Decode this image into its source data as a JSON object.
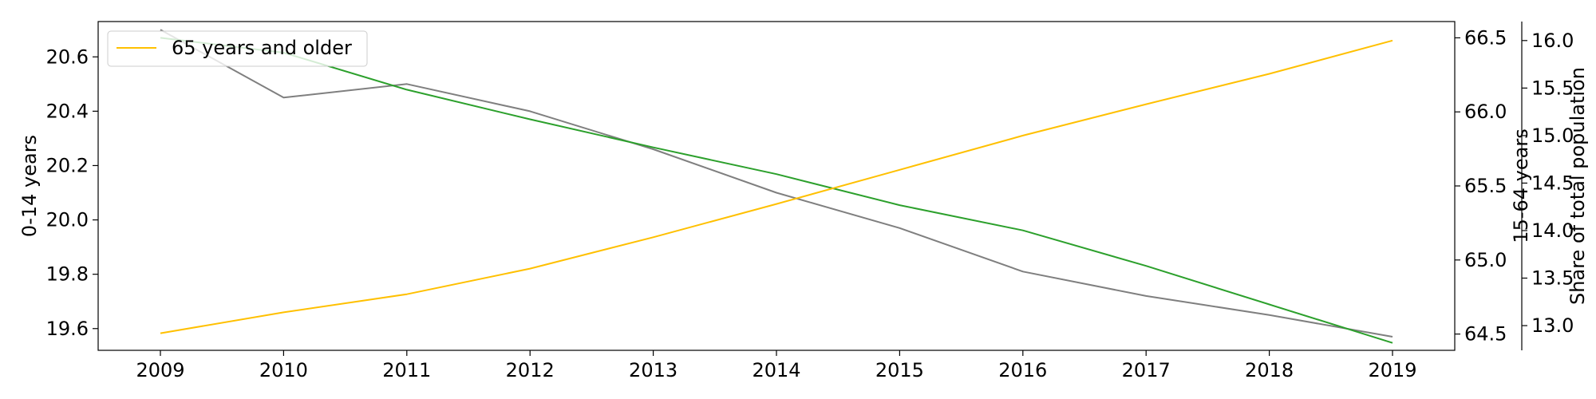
{
  "chart_data": {
    "type": "line",
    "title": "",
    "xlabel": "",
    "x": [
      2009,
      2010,
      2011,
      2012,
      2013,
      2014,
      2015,
      2016,
      2017,
      2018,
      2019
    ],
    "xticks": [
      "2009",
      "2010",
      "2011",
      "2012",
      "2013",
      "2014",
      "2015",
      "2016",
      "2017",
      "2018",
      "2019"
    ],
    "axes": {
      "left": {
        "label": "0-14 years",
        "ylim": [
          19.52,
          20.73
        ],
        "ticks": [
          "19.6",
          "19.8",
          "20.0",
          "20.2",
          "20.4",
          "20.6"
        ],
        "tick_values": [
          19.6,
          19.8,
          20.0,
          20.2,
          20.4,
          20.6
        ]
      },
      "right": {
        "label": "15-64 years",
        "ylim": [
          64.39,
          66.61
        ],
        "ticks": [
          "64.5",
          "65.0",
          "65.5",
          "66.0",
          "66.5"
        ],
        "tick_values": [
          64.5,
          65.0,
          65.5,
          66.0,
          66.5
        ]
      },
      "far_right": {
        "label": "Share of total population",
        "ylim": [
          12.74,
          16.2
        ],
        "ticks": [
          "13.0",
          "13.5",
          "14.0",
          "14.5",
          "15.0",
          "15.5",
          "16.0"
        ],
        "tick_values": [
          13.0,
          13.5,
          14.0,
          14.5,
          15.0,
          15.5,
          16.0
        ]
      }
    },
    "series": [
      {
        "axis": "left",
        "color": "#7f7f7f",
        "values": [
          20.7,
          20.45,
          20.5,
          20.4,
          20.26,
          20.1,
          19.97,
          19.81,
          19.72,
          19.65,
          19.57
        ]
      },
      {
        "axis": "right",
        "color": "#2ca02c",
        "values": [
          66.5,
          66.4,
          66.15,
          65.95,
          65.76,
          65.58,
          65.37,
          65.2,
          64.96,
          64.7,
          64.44
        ]
      },
      {
        "name": "65 years and older",
        "axis": "far_right",
        "color": "#ffc000",
        "values": [
          12.92,
          13.14,
          13.33,
          13.6,
          13.93,
          14.28,
          14.64,
          15.0,
          15.33,
          15.65,
          16.0
        ]
      }
    ],
    "legend": {
      "position": "top-left",
      "entries": [
        {
          "label": "65 years and older",
          "color": "#ffc000"
        }
      ]
    },
    "grid": false
  }
}
